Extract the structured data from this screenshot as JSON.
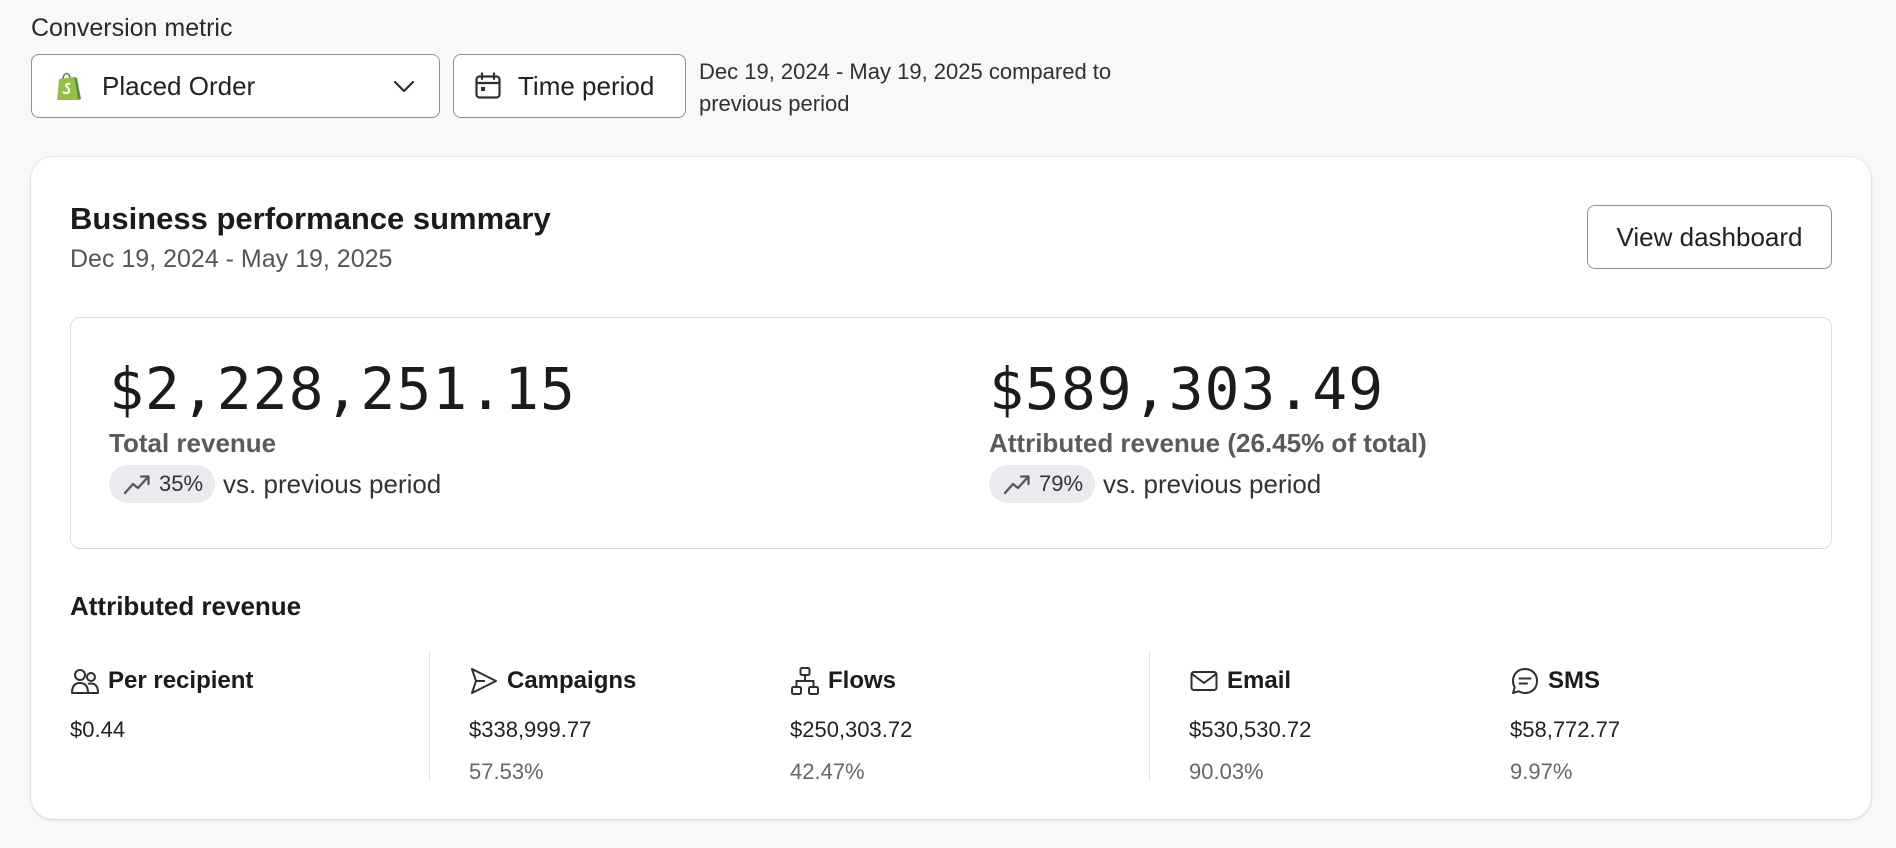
{
  "filters": {
    "metric_label": "Conversion metric",
    "metric_value": "Placed Order",
    "time_button": "Time period",
    "range_text": "Dec 19, 2024 - May 19, 2025 compared to previous period"
  },
  "card": {
    "title": "Business performance summary",
    "subtitle": "Dec 19, 2024 - May 19, 2025",
    "view_button": "View dashboard"
  },
  "totals": {
    "total": {
      "value": "$2,228,251.15",
      "label": "Total revenue",
      "delta": "35%",
      "vs": "vs. previous period"
    },
    "attributed": {
      "value": "$589,303.49",
      "label": "Attributed revenue (26.45% of total)",
      "delta": "79%",
      "vs": "vs. previous period"
    }
  },
  "attributed_revenue": {
    "title": "Attributed revenue",
    "per_recipient": {
      "label": "Per recipient",
      "value": "$0.44"
    },
    "campaigns": {
      "label": "Campaigns",
      "value": "$338,999.77",
      "pct": "57.53%"
    },
    "flows": {
      "label": "Flows",
      "value": "$250,303.72",
      "pct": "42.47%"
    },
    "email": {
      "label": "Email",
      "value": "$530,530.72",
      "pct": "90.03%"
    },
    "sms": {
      "label": "SMS",
      "value": "$58,772.77",
      "pct": "9.97%"
    }
  },
  "colors": {
    "shopify_green": "#95bf47",
    "pill_bg": "#e9ebee",
    "border": "#8c9196"
  },
  "icons": [
    "shopify-icon",
    "chevron-down-icon",
    "calendar-icon",
    "trend-up-icon",
    "users-icon",
    "send-icon",
    "flows-icon",
    "mail-icon",
    "sms-icon"
  ]
}
